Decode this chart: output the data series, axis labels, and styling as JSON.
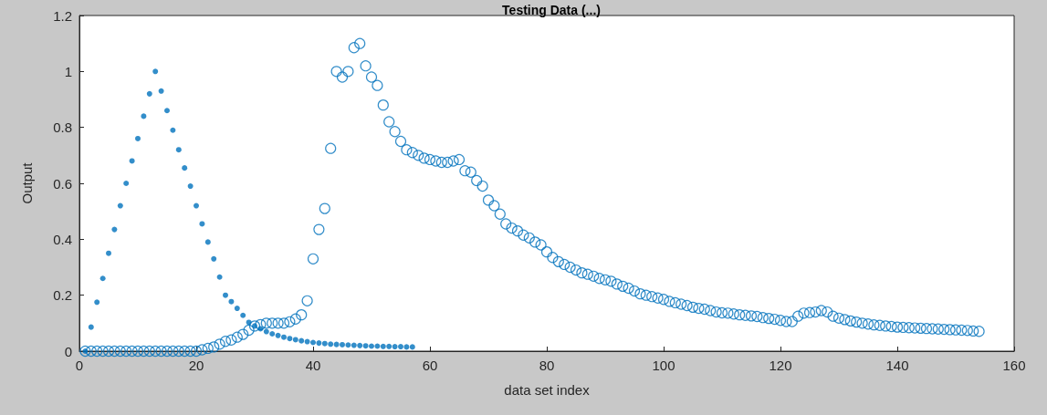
{
  "chart_data": {
    "type": "scatter",
    "title": "Testing Data (...)",
    "xlabel": "data set index",
    "ylabel": "Output",
    "xlim": [
      0,
      160
    ],
    "xticks": [
      0,
      20,
      40,
      60,
      80,
      100,
      120,
      140,
      160
    ],
    "ylim": [
      0,
      1.2
    ],
    "yticks": [
      0,
      0.2,
      0.4,
      0.6,
      0.8,
      1,
      1.2
    ],
    "grid": false,
    "marker": "circle",
    "series": [
      {
        "color": "#0072bd",
        "x": [
          1,
          2,
          3,
          4,
          5,
          6,
          7,
          8,
          9,
          10,
          11,
          12,
          13,
          14,
          15,
          16,
          17,
          18,
          19,
          20,
          21,
          22,
          23,
          24,
          25,
          26,
          27,
          28,
          29,
          30,
          31,
          32,
          33,
          34,
          35,
          36,
          37,
          38,
          39,
          40,
          41,
          42,
          43,
          44,
          45,
          46,
          47,
          48,
          49,
          50,
          51,
          52,
          53,
          54,
          55,
          56,
          57
        ],
        "values": [
          0,
          0.086,
          0.175,
          0.26,
          0.35,
          0.435,
          0.52,
          0.6,
          0.68,
          0.76,
          0.84,
          0.92,
          1.0,
          0.93,
          0.86,
          0.79,
          0.72,
          0.655,
          0.59,
          0.52,
          0.455,
          0.39,
          0.33,
          0.265,
          0.2,
          0.177,
          0.153,
          0.128,
          0.103,
          0.09,
          0.08,
          0.07,
          0.062,
          0.056,
          0.05,
          0.045,
          0.041,
          0.037,
          0.034,
          0.031,
          0.029,
          0.027,
          0.025,
          0.024,
          0.023,
          0.022,
          0.021,
          0.02,
          0.019,
          0.018,
          0.018,
          0.017,
          0.017,
          0.016,
          0.016,
          0.015,
          0.015
        ]
      },
      {
        "color": "#0072bd",
        "x": [
          1,
          2,
          3,
          4,
          5,
          6,
          7,
          8,
          9,
          10,
          11,
          12,
          13,
          14,
          15,
          16,
          17,
          18,
          19,
          20,
          21,
          22,
          23,
          24,
          25,
          26,
          27,
          28,
          29,
          30,
          31,
          32,
          33,
          34,
          35,
          36,
          37,
          38,
          39,
          40,
          41,
          42,
          43,
          44,
          45,
          46,
          47,
          48,
          49,
          50,
          51,
          52,
          53,
          54,
          55,
          56,
          57,
          58,
          59,
          60,
          61,
          62,
          63,
          64,
          65,
          66,
          67,
          68,
          69,
          70,
          71,
          72,
          73,
          74,
          75,
          76,
          77,
          78,
          79,
          80,
          81,
          82,
          83,
          84,
          85,
          86,
          87,
          88,
          89,
          90,
          91,
          92,
          93,
          94,
          95,
          96,
          97,
          98,
          99,
          100,
          101,
          102,
          103,
          104,
          105,
          106,
          107,
          108,
          109,
          110,
          111,
          112,
          113,
          114,
          115,
          116,
          117,
          118,
          119,
          120,
          121,
          122,
          123,
          124,
          125,
          126,
          127,
          128,
          129,
          130,
          131,
          132,
          133,
          134,
          135,
          136,
          137,
          138,
          139,
          140,
          141,
          142,
          143,
          144,
          145,
          146,
          147,
          148,
          149,
          150,
          151,
          152,
          153,
          154
        ],
        "values": [
          0,
          0,
          0,
          0,
          0,
          0,
          0,
          0,
          0,
          0,
          0,
          0,
          0,
          0,
          0,
          0,
          0,
          0,
          0,
          0,
          0.005,
          0.01,
          0.015,
          0.025,
          0.035,
          0.04,
          0.05,
          0.06,
          0.075,
          0.09,
          0.095,
          0.1,
          0.1,
          0.1,
          0.1,
          0.105,
          0.115,
          0.13,
          0.18,
          0.33,
          0.435,
          0.51,
          0.725,
          1.0,
          0.98,
          1.0,
          1.085,
          1.1,
          1.02,
          0.98,
          0.95,
          0.88,
          0.82,
          0.785,
          0.75,
          0.72,
          0.71,
          0.7,
          0.69,
          0.685,
          0.68,
          0.675,
          0.675,
          0.68,
          0.685,
          0.645,
          0.64,
          0.61,
          0.59,
          0.54,
          0.52,
          0.49,
          0.455,
          0.44,
          0.43,
          0.415,
          0.405,
          0.39,
          0.38,
          0.355,
          0.335,
          0.32,
          0.31,
          0.3,
          0.29,
          0.28,
          0.275,
          0.268,
          0.26,
          0.255,
          0.25,
          0.24,
          0.232,
          0.225,
          0.215,
          0.205,
          0.2,
          0.195,
          0.19,
          0.185,
          0.178,
          0.173,
          0.168,
          0.163,
          0.157,
          0.153,
          0.15,
          0.145,
          0.14,
          0.137,
          0.136,
          0.133,
          0.13,
          0.128,
          0.126,
          0.124,
          0.12,
          0.117,
          0.114,
          0.11,
          0.106,
          0.106,
          0.125,
          0.136,
          0.138,
          0.14,
          0.145,
          0.14,
          0.125,
          0.118,
          0.113,
          0.108,
          0.104,
          0.1,
          0.097,
          0.094,
          0.092,
          0.09,
          0.088,
          0.086,
          0.085,
          0.084,
          0.083,
          0.082,
          0.081,
          0.08,
          0.079,
          0.078,
          0.077,
          0.076,
          0.075,
          0.074,
          0.072,
          0.071
        ]
      }
    ]
  }
}
